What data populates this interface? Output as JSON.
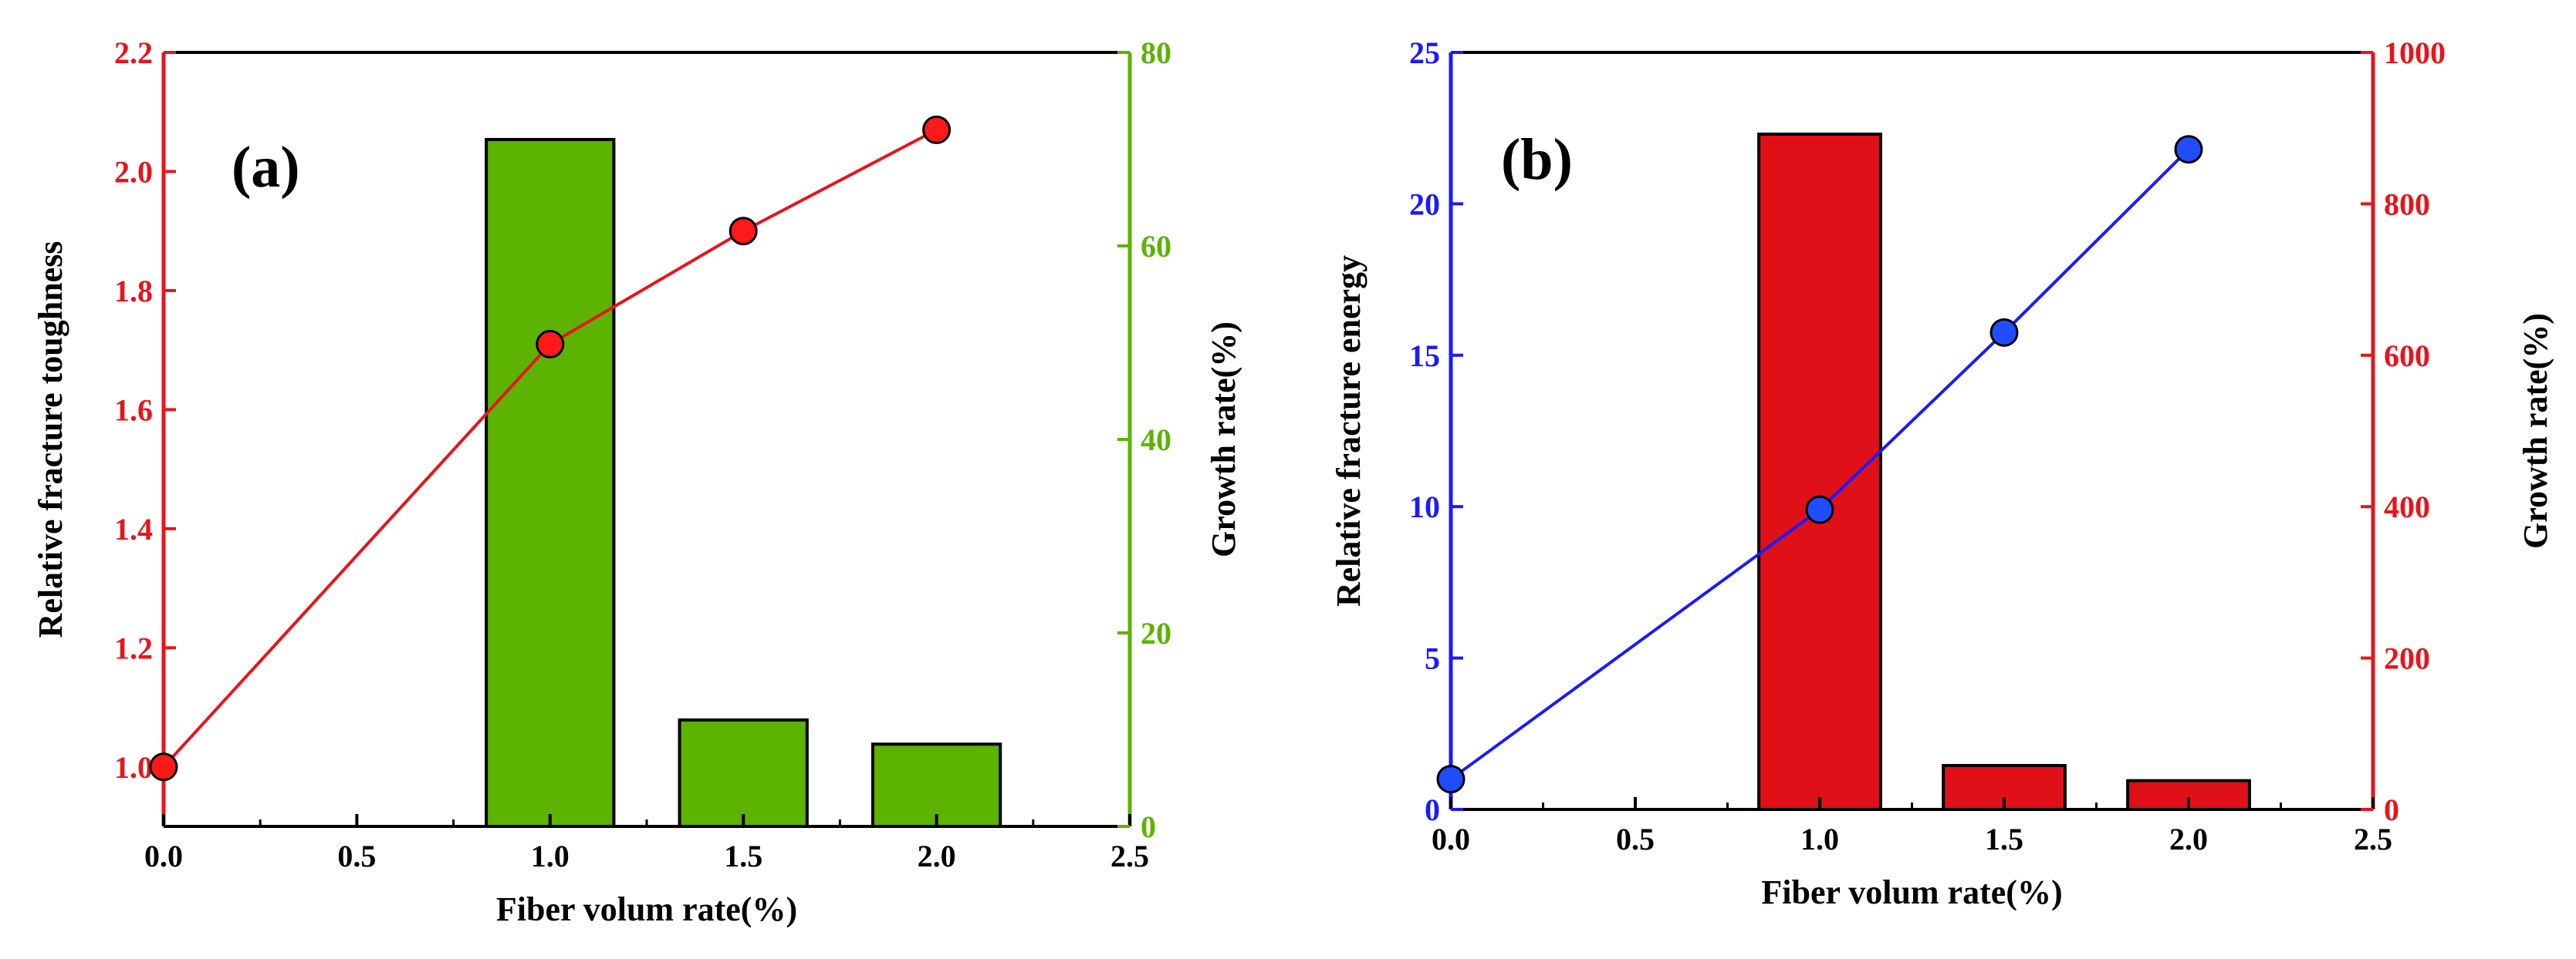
{
  "colors": {
    "axis_black": "#000000",
    "red": "#e8141c",
    "green": "#5cb300",
    "blue": "#1a1aff",
    "bar_red": "#e01018",
    "point_red": "#ff1a1a",
    "point_blue": "#1f4dff"
  },
  "chart_data": [
    {
      "type": "bar+line",
      "panel_label": "(a)",
      "xlabel": "Fiber volum rate(%)",
      "xlim": [
        0.0,
        2.5
      ],
      "xticks": [
        "0.0",
        "0.5",
        "1.0",
        "1.5",
        "2.0",
        "2.5"
      ],
      "xtick_values": [
        0.0,
        0.5,
        1.0,
        1.5,
        2.0,
        2.5
      ],
      "left_axis": {
        "label": "Relative fracture toughness",
        "lim": [
          0.9,
          2.2
        ],
        "ticks": [
          "1.0",
          "1.2",
          "1.4",
          "1.6",
          "1.8",
          "2.0",
          "2.2"
        ],
        "tick_values": [
          1.0,
          1.2,
          1.4,
          1.6,
          1.8,
          2.0,
          2.2
        ],
        "color": "red"
      },
      "right_axis": {
        "label": "Growth rate(%)",
        "lim": [
          0,
          80
        ],
        "ticks": [
          "0",
          "20",
          "40",
          "60",
          "80"
        ],
        "tick_values": [
          0,
          20,
          40,
          60,
          80
        ],
        "color": "green"
      },
      "line_series": {
        "name": "Relative fracture toughness",
        "axis": "left",
        "x": [
          0.0,
          1.0,
          1.5,
          2.0
        ],
        "y": [
          1.0,
          1.71,
          1.9,
          2.07
        ],
        "color": "red",
        "marker_color": "point_red"
      },
      "bar_series": {
        "name": "Growth rate",
        "axis": "right",
        "x": [
          1.0,
          1.5,
          2.0
        ],
        "values": [
          71,
          11,
          8.5
        ],
        "bar_width": 0.33,
        "color": "green"
      }
    },
    {
      "type": "bar+line",
      "panel_label": "(b)",
      "xlabel": "Fiber volum rate(%)",
      "xlim": [
        0.0,
        2.5
      ],
      "xticks": [
        "0.0",
        "0.5",
        "1.0",
        "1.5",
        "2.0",
        "2.5"
      ],
      "xtick_values": [
        0.0,
        0.5,
        1.0,
        1.5,
        2.0,
        2.5
      ],
      "left_axis": {
        "label": "Relative fracture energy",
        "lim": [
          0,
          25
        ],
        "ticks": [
          "0",
          "5",
          "10",
          "15",
          "20",
          "25"
        ],
        "tick_values": [
          0,
          5,
          10,
          15,
          20,
          25
        ],
        "color": "blue"
      },
      "right_axis": {
        "label": "Growth rate(%)",
        "lim": [
          0,
          1000
        ],
        "ticks": [
          "0",
          "200",
          "400",
          "600",
          "800",
          "1000"
        ],
        "tick_values": [
          0,
          200,
          400,
          600,
          800,
          1000
        ],
        "color": "red"
      },
      "line_series": {
        "name": "Relative fracture energy",
        "axis": "left",
        "x": [
          0.0,
          1.0,
          1.5,
          2.0
        ],
        "y": [
          1.0,
          9.9,
          15.75,
          21.8
        ],
        "color": "blue",
        "marker_color": "point_blue"
      },
      "bar_series": {
        "name": "Growth rate",
        "axis": "right",
        "x": [
          1.0,
          1.5,
          2.0
        ],
        "values": [
          892,
          58,
          38
        ],
        "bar_width": 0.33,
        "color": "bar_red"
      }
    }
  ]
}
